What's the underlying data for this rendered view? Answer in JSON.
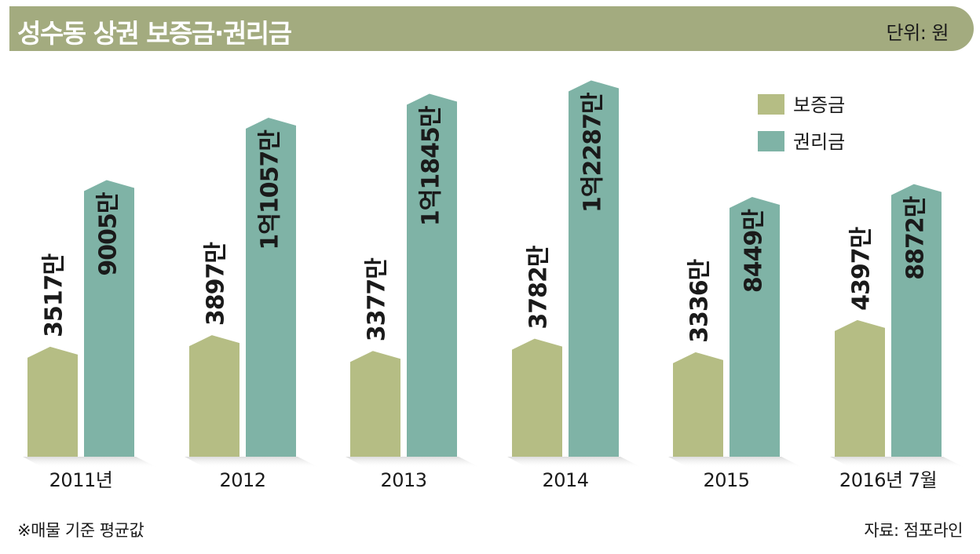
{
  "header": {
    "title": "성수동 상권 보증금·권리금",
    "unit": "단위: 원",
    "bar_color": "#a3ab7f"
  },
  "footer": {
    "note": "※매물 기준 평균값",
    "source": "자료: 점포라인"
  },
  "chart_data": {
    "type": "bar",
    "title": "성수동 상권 보증금·권리금",
    "unit": "단위: 원",
    "categories": [
      "2011년",
      "2012",
      "2013",
      "2014",
      "2015",
      "2016년  7월"
    ],
    "series": [
      {
        "name": "보증금",
        "color": "#b5bd84",
        "values": [
          35170000,
          38970000,
          33770000,
          37820000,
          33360000,
          43970000
        ],
        "labels": [
          "3517만",
          "3897만",
          "3377만",
          "3782만",
          "3336만",
          "4397만"
        ]
      },
      {
        "name": "권리금",
        "color": "#7fb3a6",
        "values": [
          90050000,
          110570000,
          118450000,
          122870000,
          84490000,
          88720000
        ],
        "labels": [
          "9005만",
          "1억1057만",
          "1억1845만",
          "1억2287만",
          "8449만",
          "8872만"
        ]
      }
    ],
    "legend": "top-right"
  }
}
